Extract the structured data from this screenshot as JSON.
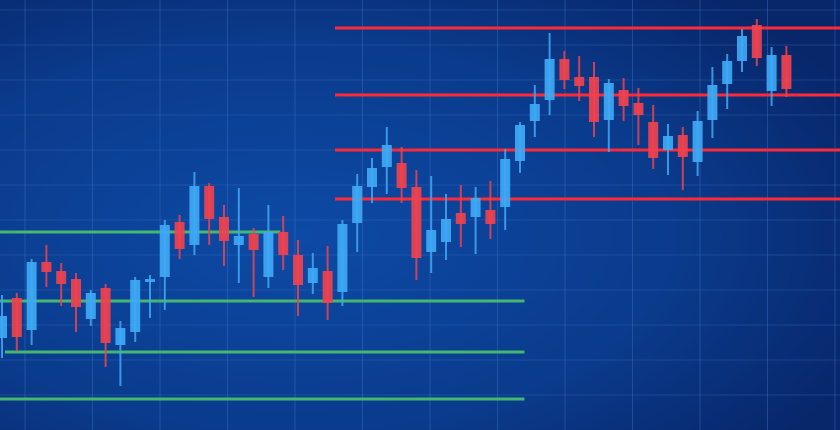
{
  "chart_data": {
    "type": "candlestick",
    "title": "",
    "xlabel": "",
    "ylabel": "",
    "grid": true,
    "axes_visible": false,
    "colors": {
      "background": "#0b3f92",
      "up": "#3fa9f5",
      "down": "#f0424e",
      "resistance": "#ff2a36",
      "support": "#4cc46a",
      "grid": "#3a6fc0"
    },
    "ylim": [
      0,
      43
    ],
    "candles": [
      {
        "o": 9.2,
        "c": 11.4,
        "h": 13.5,
        "l": 7.2
      },
      {
        "o": 13.2,
        "c": 9.3,
        "h": 13.7,
        "l": 7.9
      },
      {
        "o": 10.0,
        "c": 16.8,
        "h": 17.1,
        "l": 8.5
      },
      {
        "o": 16.8,
        "c": 15.8,
        "h": 18.5,
        "l": 14.3
      },
      {
        "o": 15.9,
        "c": 14.6,
        "h": 16.7,
        "l": 12.4
      },
      {
        "o": 15.1,
        "c": 12.3,
        "h": 15.7,
        "l": 9.8
      },
      {
        "o": 11.1,
        "c": 13.7,
        "h": 14.0,
        "l": 10.4
      },
      {
        "o": 14.2,
        "c": 8.7,
        "h": 14.6,
        "l": 6.3
      },
      {
        "o": 8.5,
        "c": 10.2,
        "h": 10.9,
        "l": 4.4
      },
      {
        "o": 9.8,
        "c": 15.0,
        "h": 15.3,
        "l": 8.8
      },
      {
        "o": 14.8,
        "c": 15.1,
        "h": 15.5,
        "l": 11.2
      },
      {
        "o": 15.3,
        "c": 20.5,
        "h": 21.0,
        "l": 12.0
      },
      {
        "o": 20.8,
        "c": 18.1,
        "h": 21.5,
        "l": 17.1
      },
      {
        "o": 18.5,
        "c": 24.4,
        "h": 25.8,
        "l": 17.5
      },
      {
        "o": 24.4,
        "c": 21.1,
        "h": 24.7,
        "l": 18.5
      },
      {
        "o": 21.3,
        "c": 18.9,
        "h": 22.5,
        "l": 16.4
      },
      {
        "o": 18.5,
        "c": 19.4,
        "h": 24.2,
        "l": 14.7
      },
      {
        "o": 19.6,
        "c": 18.0,
        "h": 20.2,
        "l": 13.3
      },
      {
        "o": 15.3,
        "c": 19.8,
        "h": 22.5,
        "l": 14.2
      },
      {
        "o": 19.8,
        "c": 17.5,
        "h": 21.4,
        "l": 16.0
      },
      {
        "o": 17.5,
        "c": 14.5,
        "h": 19.0,
        "l": 11.4
      },
      {
        "o": 14.7,
        "c": 16.2,
        "h": 17.7,
        "l": 13.6
      },
      {
        "o": 15.9,
        "c": 12.7,
        "h": 18.4,
        "l": 11.0
      },
      {
        "o": 13.8,
        "c": 20.6,
        "h": 21.0,
        "l": 12.4
      },
      {
        "o": 20.7,
        "c": 24.4,
        "h": 25.6,
        "l": 17.8
      },
      {
        "o": 24.3,
        "c": 26.2,
        "h": 27.2,
        "l": 22.7
      },
      {
        "o": 26.3,
        "c": 28.5,
        "h": 30.3,
        "l": 23.6
      },
      {
        "o": 26.7,
        "c": 24.2,
        "h": 28.3,
        "l": 22.7
      },
      {
        "o": 24.3,
        "c": 17.2,
        "h": 26.0,
        "l": 15.0
      },
      {
        "o": 17.8,
        "c": 20.0,
        "h": 25.4,
        "l": 15.7
      },
      {
        "o": 18.8,
        "c": 21.1,
        "h": 23.6,
        "l": 17.0
      },
      {
        "o": 21.7,
        "c": 20.6,
        "h": 24.5,
        "l": 18.3
      },
      {
        "o": 21.3,
        "c": 23.2,
        "h": 24.3,
        "l": 17.6
      },
      {
        "o": 22.0,
        "c": 20.6,
        "h": 24.9,
        "l": 19.1
      },
      {
        "o": 22.3,
        "c": 27.1,
        "h": 28.1,
        "l": 20.0
      },
      {
        "o": 26.9,
        "c": 30.5,
        "h": 30.8,
        "l": 25.7
      },
      {
        "o": 30.9,
        "c": 32.6,
        "h": 34.5,
        "l": 29.3
      },
      {
        "o": 33.0,
        "c": 37.1,
        "h": 39.7,
        "l": 31.5
      },
      {
        "o": 37.1,
        "c": 35.0,
        "h": 37.9,
        "l": 34.1
      },
      {
        "o": 35.3,
        "c": 34.4,
        "h": 37.4,
        "l": 32.9
      },
      {
        "o": 35.3,
        "c": 30.8,
        "h": 36.8,
        "l": 29.3
      },
      {
        "o": 31.0,
        "c": 34.7,
        "h": 35.1,
        "l": 27.8
      },
      {
        "o": 34.0,
        "c": 32.4,
        "h": 35.2,
        "l": 30.9
      },
      {
        "o": 32.7,
        "c": 31.5,
        "h": 34.2,
        "l": 28.5
      },
      {
        "o": 30.8,
        "c": 27.2,
        "h": 32.5,
        "l": 26.1
      },
      {
        "o": 28.0,
        "c": 29.4,
        "h": 30.6,
        "l": 25.5
      },
      {
        "o": 29.5,
        "c": 27.3,
        "h": 30.3,
        "l": 24.0
      },
      {
        "o": 26.8,
        "c": 30.9,
        "h": 31.9,
        "l": 25.4
      },
      {
        "o": 31.0,
        "c": 34.5,
        "h": 36.3,
        "l": 29.2
      },
      {
        "o": 34.6,
        "c": 36.9,
        "h": 37.6,
        "l": 32.1
      },
      {
        "o": 36.9,
        "c": 39.4,
        "h": 40.1,
        "l": 35.8
      },
      {
        "o": 40.5,
        "c": 37.2,
        "h": 41.1,
        "l": 36.4
      },
      {
        "o": 33.9,
        "c": 37.5,
        "h": 38.3,
        "l": 32.4
      },
      {
        "o": 37.5,
        "c": 34.1,
        "h": 38.4,
        "l": 33.3
      }
    ],
    "resistance_levels": [
      {
        "price": 40.2,
        "from": 22.5,
        "to": 57
      },
      {
        "price": 33.5,
        "from": 22.5,
        "to": 57
      },
      {
        "price": 28.0,
        "from": 22.5,
        "to": 57
      },
      {
        "price": 23.1,
        "from": 22.5,
        "to": 57
      }
    ],
    "support_levels": [
      {
        "price": 19.8,
        "from": -1,
        "to": 18.8
      },
      {
        "price": 12.9,
        "from": -1,
        "to": 35.3
      },
      {
        "price": 7.8,
        "from": 0.2,
        "to": 35.3
      },
      {
        "price": 3.1,
        "from": -1,
        "to": 35.3
      }
    ]
  }
}
